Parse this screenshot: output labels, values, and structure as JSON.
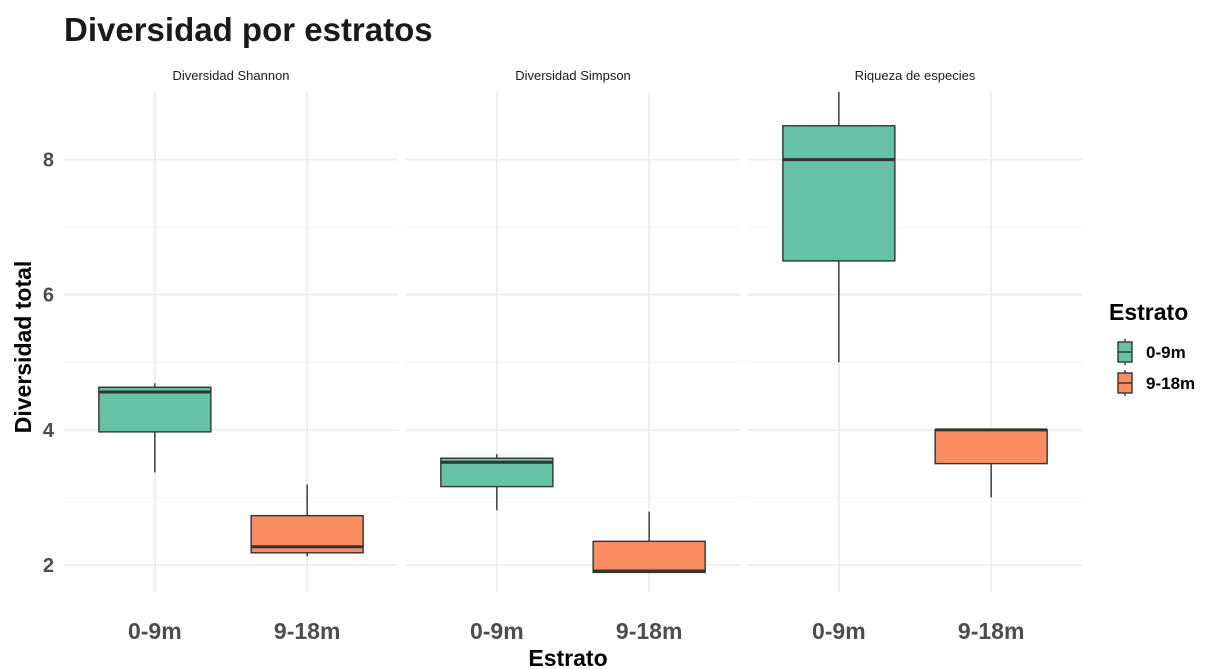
{
  "chart_data": {
    "type": "boxplot",
    "title": "Diversidad por estratos",
    "xlabel": "Estrato",
    "ylabel": "Diversidad total",
    "ylim": [
      1.6,
      9.0
    ],
    "yticks": [
      2,
      4,
      6,
      8
    ],
    "categories": [
      "0-9m",
      "9-18m"
    ],
    "grid": true,
    "legend": {
      "title": "Estrato",
      "position": "right",
      "entries": [
        {
          "label": "0-9m",
          "color": "#66c2a5"
        },
        {
          "label": "9-18m",
          "color": "#fc8d62"
        }
      ]
    },
    "facets": [
      {
        "name": "Diversidad Shannon",
        "boxes": [
          {
            "category": "0-9m",
            "min": 3.37,
            "q1": 3.97,
            "median": 4.56,
            "q3": 4.63,
            "max": 4.69
          },
          {
            "category": "9-18m",
            "min": 2.13,
            "q1": 2.18,
            "median": 2.27,
            "q3": 2.73,
            "max": 3.19
          }
        ]
      },
      {
        "name": "Diversidad Simpson",
        "boxes": [
          {
            "category": "0-9m",
            "min": 2.81,
            "q1": 3.16,
            "median": 3.52,
            "q3": 3.58,
            "max": 3.64
          },
          {
            "category": "9-18m",
            "min": 1.88,
            "q1": 1.89,
            "median": 1.91,
            "q3": 2.35,
            "max": 2.79
          }
        ]
      },
      {
        "name": "Riqueza de especies",
        "boxes": [
          {
            "category": "0-9m",
            "min": 5.0,
            "q1": 6.5,
            "median": 8.0,
            "q3": 8.5,
            "max": 9.0
          },
          {
            "category": "9-18m",
            "min": 3.0,
            "q1": 3.5,
            "median": 4.0,
            "q3": 4.0,
            "max": 4.0
          }
        ]
      }
    ]
  }
}
